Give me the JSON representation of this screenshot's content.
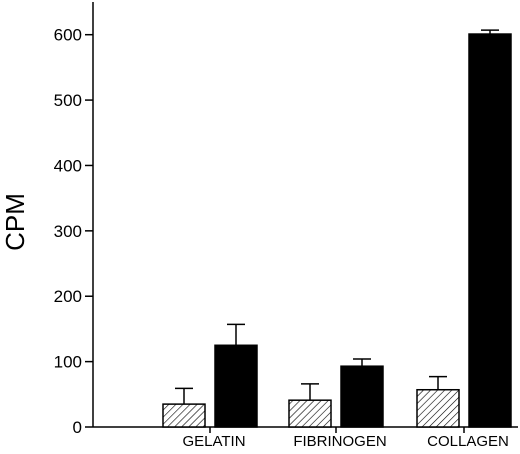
{
  "chart_data": {
    "type": "bar",
    "title": "",
    "xlabel": "",
    "ylabel": "CPM",
    "ylim": [
      0,
      650
    ],
    "yticks": [
      0,
      100,
      200,
      300,
      400,
      500,
      600
    ],
    "grid": false,
    "legend": "none",
    "categories": [
      "GELATIN",
      "FIBRINOGEN",
      "COLLAGEN"
    ],
    "series": [
      {
        "pattern": "diagonal-hatch",
        "values": [
          35,
          41,
          57
        ],
        "errors": [
          24,
          25,
          20
        ]
      },
      {
        "fill": "#000000",
        "values": [
          125,
          93,
          601
        ],
        "errors": [
          32,
          11,
          6
        ]
      }
    ]
  }
}
